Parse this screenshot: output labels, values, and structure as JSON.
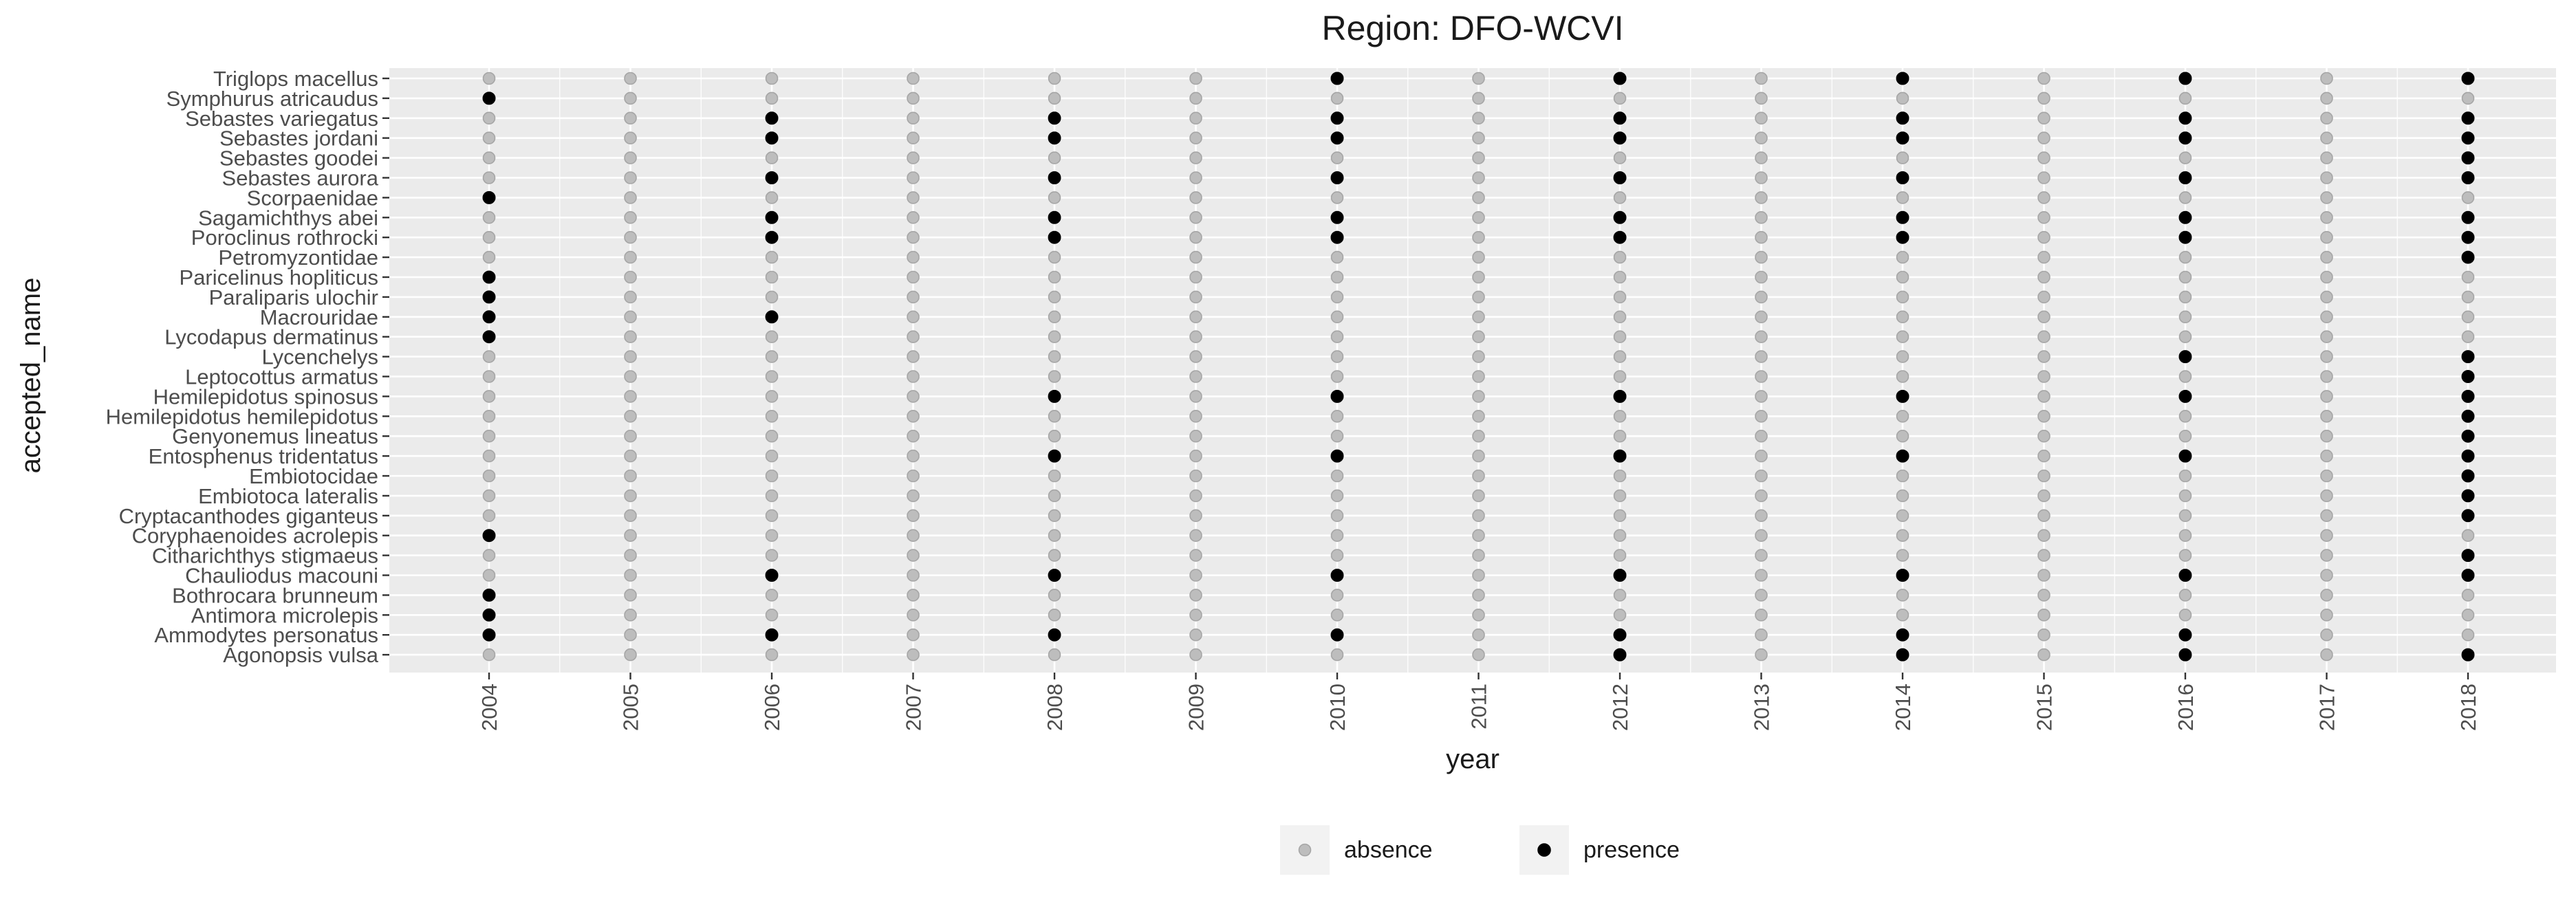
{
  "chart_data": {
    "type": "scatter",
    "title": "Region: DFO-WCVI",
    "xlabel": "year",
    "ylabel": "accepted_name",
    "grid": true,
    "legend_position": "bottom",
    "x": [
      "2004",
      "2005",
      "2006",
      "2007",
      "2008",
      "2009",
      "2010",
      "2011",
      "2012",
      "2013",
      "2014",
      "2015",
      "2016",
      "2017",
      "2018"
    ],
    "y_categories_top_to_bottom": [
      "Triglops macellus",
      "Symphurus atricaudus",
      "Sebastes variegatus",
      "Sebastes jordani",
      "Sebastes goodei",
      "Sebastes aurora",
      "Scorpaenidae",
      "Sagamichthys abei",
      "Poroclinus rothrocki",
      "Petromyzontidae",
      "Paricelinus hopliticus",
      "Paraliparis ulochir",
      "Macrouridae",
      "Lycodapus dermatinus",
      "Lycenchelys",
      "Leptocottus armatus",
      "Hemilepidotus spinosus",
      "Hemilepidotus hemilepidotus",
      "Genyonemus lineatus",
      "Entosphenus tridentatus",
      "Embiotocidae",
      "Embiotoca lateralis",
      "Cryptacanthodes giganteus",
      "Coryphaenoides acrolepis",
      "Citharichthys stigmaeus",
      "Chauliodus macouni",
      "Bothrocara brunneum",
      "Antimora microlepis",
      "Ammodytes personatus",
      "Agonopsis vulsa"
    ],
    "presence": {
      "Triglops macellus": [
        "2010",
        "2012",
        "2014",
        "2016",
        "2018"
      ],
      "Symphurus atricaudus": [
        "2004"
      ],
      "Sebastes variegatus": [
        "2006",
        "2008",
        "2010",
        "2012",
        "2014",
        "2016",
        "2018"
      ],
      "Sebastes jordani": [
        "2006",
        "2008",
        "2010",
        "2012",
        "2014",
        "2016",
        "2018"
      ],
      "Sebastes goodei": [
        "2018"
      ],
      "Sebastes aurora": [
        "2006",
        "2008",
        "2010",
        "2012",
        "2014",
        "2016",
        "2018"
      ],
      "Scorpaenidae": [
        "2004"
      ],
      "Sagamichthys abei": [
        "2006",
        "2008",
        "2010",
        "2012",
        "2014",
        "2016",
        "2018"
      ],
      "Poroclinus rothrocki": [
        "2006",
        "2008",
        "2010",
        "2012",
        "2014",
        "2016",
        "2018"
      ],
      "Petromyzontidae": [
        "2018"
      ],
      "Paricelinus hopliticus": [
        "2004"
      ],
      "Paraliparis ulochir": [
        "2004"
      ],
      "Macrouridae": [
        "2004",
        "2006"
      ],
      "Lycodapus dermatinus": [
        "2004"
      ],
      "Lycenchelys": [
        "2016",
        "2018"
      ],
      "Leptocottus armatus": [
        "2018"
      ],
      "Hemilepidotus spinosus": [
        "2008",
        "2010",
        "2012",
        "2014",
        "2016",
        "2018"
      ],
      "Hemilepidotus hemilepidotus": [
        "2018"
      ],
      "Genyonemus lineatus": [
        "2018"
      ],
      "Entosphenus tridentatus": [
        "2008",
        "2010",
        "2012",
        "2014",
        "2016",
        "2018"
      ],
      "Embiotocidae": [
        "2018"
      ],
      "Embiotoca lateralis": [
        "2018"
      ],
      "Cryptacanthodes giganteus": [
        "2018"
      ],
      "Coryphaenoides acrolepis": [
        "2004"
      ],
      "Citharichthys stigmaeus": [
        "2018"
      ],
      "Chauliodus macouni": [
        "2006",
        "2008",
        "2010",
        "2012",
        "2014",
        "2016",
        "2018"
      ],
      "Bothrocara brunneum": [
        "2004"
      ],
      "Antimora microlepis": [
        "2004"
      ],
      "Ammodytes personatus": [
        "2004",
        "2006",
        "2008",
        "2010",
        "2012",
        "2014",
        "2016"
      ],
      "Agonopsis vulsa": [
        "2012",
        "2014",
        "2016",
        "2018"
      ]
    },
    "legend": [
      {
        "label": "absence",
        "color": "#bdbdbd"
      },
      {
        "label": "presence",
        "color": "#000000"
      }
    ],
    "colors": {
      "panel_background": "#ebebeb",
      "grid_line": "#ffffff",
      "absence_fill": "#bdbdbd",
      "absence_stroke": "#a6a6a6",
      "presence": "#000000",
      "tick": "#333333",
      "text": "#1a1a1a",
      "tick_label": "#4d4d4d",
      "legend_key_bg": "#f2f2f2"
    }
  }
}
